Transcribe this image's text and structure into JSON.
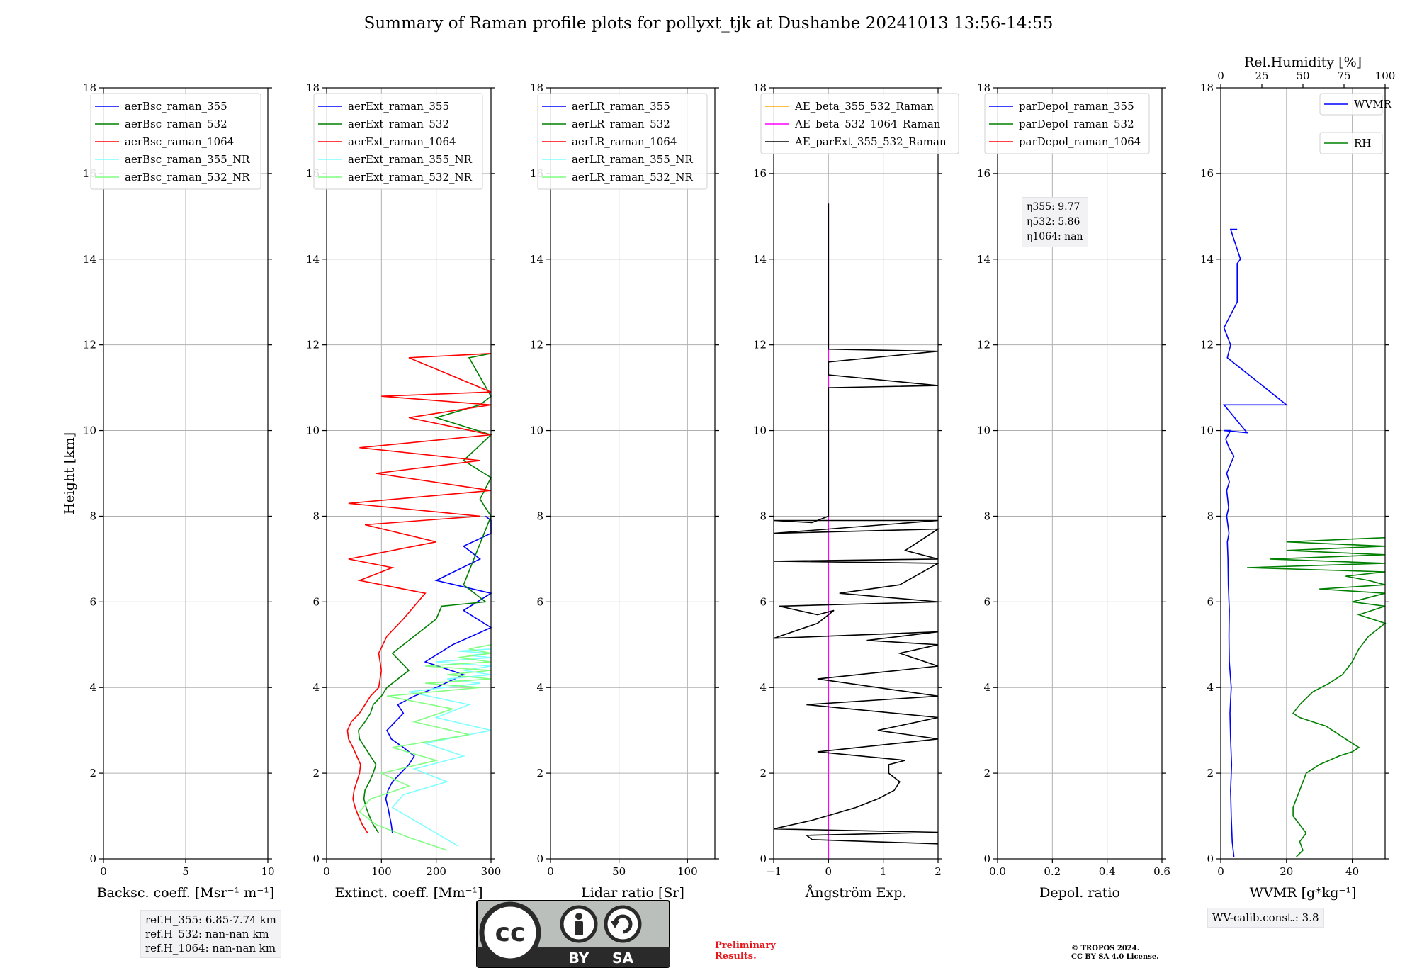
{
  "figure": {
    "title": "Summary of Raman profile plots for pollyxt_tjk at Dushanbe 20241013 13:56-14:55",
    "refH": [
      "ref.H_355: 6.85-7.74 km",
      "ref.H_532: nan-nan km",
      "ref.H_1064: nan-nan km"
    ],
    "eta": [
      "η355: 9.77",
      "η532: 5.86",
      "η1064: nan"
    ],
    "wv_calib": "WV-calib.const.: 3.8",
    "preliminary": [
      "Preliminary",
      "Results."
    ],
    "copyright": [
      "© TROPOS 2024.",
      "CC BY SA 4.0 License."
    ],
    "license_badge": {
      "icon": "cc-by-sa-badge",
      "labels": [
        "BY",
        "SA"
      ],
      "colors": {
        "bg": "#bbbfbb",
        "dark": "#2a2a2a"
      }
    }
  },
  "chart_data": [
    {
      "type": "line",
      "xlabel": "Backsc. coeff. [Msr⁻¹ m⁻¹]",
      "ylabel": "Height [km]",
      "xlim": [
        0,
        10
      ],
      "ylim": [
        0,
        18
      ],
      "xticks": [
        "0",
        "5",
        "10"
      ],
      "yticks": [
        "0",
        "2",
        "4",
        "6",
        "8",
        "10",
        "12",
        "14",
        "16",
        "18"
      ],
      "grid": true,
      "legend_position": "top-left",
      "series": [
        {
          "name": "aerBsc_raman_355",
          "color": "#0000ff",
          "x": [],
          "y": []
        },
        {
          "name": "aerBsc_raman_532",
          "color": "#008000",
          "x": [],
          "y": []
        },
        {
          "name": "aerBsc_raman_1064",
          "color": "#ff0000",
          "x": [],
          "y": []
        },
        {
          "name": "aerBsc_raman_355_NR",
          "color": "#7fffff",
          "x": [],
          "y": []
        },
        {
          "name": "aerBsc_raman_532_NR",
          "color": "#80ff80",
          "x": [],
          "y": []
        }
      ]
    },
    {
      "type": "line",
      "xlabel": "Extinct. coeff. [Mm⁻¹]",
      "ylabel": "",
      "xlim": [
        0,
        300
      ],
      "ylim": [
        0,
        18
      ],
      "xticks": [
        "0",
        "100",
        "200",
        "300"
      ],
      "yticks": [
        "0",
        "2",
        "4",
        "6",
        "8",
        "10",
        "12",
        "14",
        "16",
        "18"
      ],
      "grid": true,
      "legend_position": "top-left",
      "series": [
        {
          "name": "aerExt_raman_355",
          "color": "#0000ff",
          "x": [
            120,
            118,
            115,
            112,
            108,
            112,
            120,
            135,
            150,
            160,
            140,
            118,
            110,
            125,
            140,
            130,
            160,
            200,
            250,
            180,
            230,
            300,
            250,
            300,
            200,
            280,
            250,
            300,
            300,
            290
          ],
          "y": [
            0.6,
            0.8,
            1.0,
            1.2,
            1.4,
            1.6,
            1.8,
            2.0,
            2.2,
            2.4,
            2.6,
            2.8,
            3.0,
            3.2,
            3.4,
            3.6,
            3.8,
            4.0,
            4.3,
            4.6,
            5.0,
            5.4,
            5.8,
            6.2,
            6.5,
            7.0,
            7.3,
            7.6,
            7.9,
            8.0
          ]
        },
        {
          "name": "aerExt_raman_532",
          "color": "#008000",
          "x": [
            95,
            85,
            78,
            72,
            68,
            70,
            78,
            85,
            90,
            80,
            70,
            60,
            58,
            70,
            80,
            85,
            100,
            110,
            150,
            120,
            160,
            200,
            210,
            290,
            250,
            300,
            280,
            300,
            250,
            300,
            200,
            280,
            300,
            260,
            300
          ],
          "y": [
            0.6,
            0.8,
            1.0,
            1.2,
            1.4,
            1.6,
            1.8,
            2.0,
            2.2,
            2.4,
            2.6,
            2.8,
            3.0,
            3.2,
            3.4,
            3.6,
            3.8,
            4.0,
            4.4,
            4.8,
            5.2,
            5.6,
            5.9,
            6.0,
            6.4,
            8.0,
            8.4,
            8.9,
            9.3,
            9.9,
            10.3,
            10.6,
            10.8,
            11.7,
            11.8
          ]
        },
        {
          "name": "aerExt_raman_1064",
          "color": "#ff0000",
          "x": [
            75,
            65,
            58,
            52,
            48,
            50,
            55,
            60,
            62,
            55,
            48,
            40,
            38,
            45,
            60,
            70,
            80,
            95,
            100,
            95,
            110,
            140,
            160,
            180,
            60,
            120,
            40,
            200,
            70,
            280,
            40,
            300,
            90,
            280,
            60,
            300,
            150,
            300,
            100,
            300,
            150,
            300
          ],
          "y": [
            0.6,
            0.8,
            1.0,
            1.2,
            1.4,
            1.6,
            1.8,
            2.0,
            2.2,
            2.4,
            2.6,
            2.8,
            3.0,
            3.2,
            3.4,
            3.6,
            3.8,
            4.0,
            4.4,
            4.8,
            5.2,
            5.6,
            5.9,
            6.2,
            6.5,
            6.8,
            7.0,
            7.4,
            7.8,
            8.0,
            8.3,
            8.6,
            9.0,
            9.3,
            9.6,
            9.9,
            10.3,
            10.6,
            10.8,
            10.9,
            11.7,
            11.8
          ]
        },
        {
          "name": "aerExt_raman_355_NR",
          "color": "#7fffff",
          "x": [
            240,
            200,
            160,
            120,
            140,
            220,
            160,
            250,
            180,
            300,
            200,
            260,
            150,
            280,
            220,
            300,
            250,
            300,
            200,
            300,
            260,
            300,
            240,
            300
          ],
          "y": [
            0.3,
            0.6,
            0.9,
            1.2,
            1.5,
            1.8,
            2.1,
            2.4,
            2.7,
            3.0,
            3.3,
            3.6,
            3.9,
            4.1,
            4.2,
            4.3,
            4.4,
            4.5,
            4.6,
            4.7,
            4.75,
            4.8,
            4.85,
            4.9
          ]
        },
        {
          "name": "aerExt_raman_532_NR",
          "color": "#80ff80",
          "x": [
            220,
            150,
            90,
            60,
            80,
            150,
            100,
            200,
            120,
            260,
            160,
            230,
            110,
            280,
            180,
            300,
            220,
            300,
            180,
            300,
            240,
            300,
            260,
            300
          ],
          "y": [
            0.2,
            0.5,
            0.8,
            1.1,
            1.4,
            1.7,
            2.0,
            2.3,
            2.6,
            2.9,
            3.2,
            3.5,
            3.8,
            4.0,
            4.1,
            4.2,
            4.3,
            4.4,
            4.5,
            4.6,
            4.7,
            4.8,
            4.9,
            5.0
          ]
        }
      ]
    },
    {
      "type": "line",
      "xlabel": "Lidar ratio [Sr]",
      "ylabel": "",
      "xlim": [
        0,
        120
      ],
      "ylim": [
        0,
        18
      ],
      "xticks": [
        "0",
        "50",
        "100"
      ],
      "yticks": [
        "0",
        "2",
        "4",
        "6",
        "8",
        "10",
        "12",
        "14",
        "16",
        "18"
      ],
      "grid": true,
      "legend_position": "top-left",
      "series": [
        {
          "name": "aerLR_raman_355",
          "color": "#0000ff",
          "x": [],
          "y": []
        },
        {
          "name": "aerLR_raman_532",
          "color": "#008000",
          "x": [],
          "y": []
        },
        {
          "name": "aerLR_raman_1064",
          "color": "#ff0000",
          "x": [],
          "y": []
        },
        {
          "name": "aerLR_raman_355_NR",
          "color": "#7fffff",
          "x": [],
          "y": []
        },
        {
          "name": "aerLR_raman_532_NR",
          "color": "#80ff80",
          "x": [],
          "y": []
        }
      ]
    },
    {
      "type": "line",
      "xlabel": "Ångström Exp.",
      "ylabel": "",
      "xlim": [
        -1,
        2
      ],
      "ylim": [
        0,
        18
      ],
      "xticks": [
        "−1",
        "0",
        "1",
        "2"
      ],
      "yticks": [
        "0",
        "2",
        "4",
        "6",
        "8",
        "10",
        "12",
        "14",
        "16",
        "18"
      ],
      "grid": true,
      "legend_position": "top-left",
      "series": [
        {
          "name": "AE_beta_355_532_Raman",
          "color": "#ffa500",
          "x": [],
          "y": []
        },
        {
          "name": "AE_beta_532_1064_Raman",
          "color": "#ff00ff",
          "x": [
            0,
            0
          ],
          "y": [
            0,
            15.3
          ]
        },
        {
          "name": "AE_parExt_355_532_Raman",
          "color": "#000000",
          "x": [
            2,
            -0.3,
            -0.4,
            2,
            -1,
            -0.3,
            0.5,
            0.9,
            1.2,
            1.3,
            1.1,
            1.1,
            1.4,
            -0.2,
            2,
            0.9,
            2,
            -0.4,
            2,
            -0.2,
            2,
            1.3,
            2,
            0.7,
            2,
            -1,
            -0.2,
            0.1,
            -0.2,
            -0.9,
            2,
            0.2,
            1.3,
            2,
            -1,
            2,
            1.4,
            2,
            -1,
            2,
            -1,
            -0.3,
            0,
            0,
            2,
            0,
            0,
            2,
            0,
            0
          ],
          "y": [
            0.35,
            0.45,
            0.55,
            0.62,
            0.7,
            0.9,
            1.2,
            1.4,
            1.6,
            1.8,
            2.0,
            2.2,
            2.3,
            2.5,
            2.8,
            3.0,
            3.3,
            3.6,
            3.8,
            4.2,
            4.5,
            4.8,
            5.0,
            5.1,
            5.3,
            5.15,
            5.5,
            5.8,
            5.7,
            5.9,
            6.0,
            6.2,
            6.4,
            6.9,
            6.95,
            7.0,
            7.2,
            7.7,
            7.6,
            7.9,
            7.9,
            7.85,
            8.0,
            11.0,
            11.05,
            11.3,
            11.6,
            11.85,
            11.9,
            15.3
          ]
        }
      ]
    },
    {
      "type": "line",
      "xlabel": "Depol. ratio",
      "ylabel": "",
      "xlim": [
        0,
        0.6
      ],
      "ylim": [
        0,
        18
      ],
      "xticks": [
        "0.0",
        "0.2",
        "0.4",
        "0.6"
      ],
      "yticks": [
        "0",
        "2",
        "4",
        "6",
        "8",
        "10",
        "12",
        "14",
        "16",
        "18"
      ],
      "grid": true,
      "legend_position": "top-left",
      "series": [
        {
          "name": "parDepol_raman_355",
          "color": "#0000ff",
          "x": [],
          "y": []
        },
        {
          "name": "parDepol_raman_532",
          "color": "#008000",
          "x": [],
          "y": []
        },
        {
          "name": "parDepol_raman_1064",
          "color": "#ff0000",
          "x": [],
          "y": []
        }
      ]
    },
    {
      "type": "line",
      "xlabel": "WVMR [g*kg⁻¹]",
      "ylabel": "",
      "xlim": [
        0,
        50
      ],
      "ylim": [
        0,
        18
      ],
      "xticks": [
        "0",
        "20",
        "40"
      ],
      "yticks": [
        "0",
        "2",
        "4",
        "6",
        "8",
        "10",
        "12",
        "14",
        "16",
        "18"
      ],
      "x2label": "Rel.Humidity [%]",
      "x2lim": [
        0,
        100
      ],
      "x2ticks": [
        "0",
        "25",
        "50",
        "75",
        "100"
      ],
      "grid": true,
      "legend_position": "top-right",
      "series": [
        {
          "name": "WVMR",
          "color": "#0000ff",
          "axis": "bottom",
          "x": [
            4,
            3.5,
            3.2,
            3.0,
            3.3,
            3.0,
            2.8,
            3.2,
            2.6,
            2.5,
            2.6,
            2.3,
            2.2,
            2.0,
            2.5,
            1.8,
            2.4,
            1.8,
            2.6,
            1.8,
            4,
            2.5,
            1.5,
            3,
            1,
            8,
            1,
            20,
            2,
            3,
            1,
            5,
            5,
            6,
            3,
            5
          ],
          "y": [
            0.05,
            0.4,
            1.0,
            1.6,
            2.2,
            2.8,
            3.4,
            4.0,
            4.6,
            5.2,
            5.8,
            6.4,
            7.0,
            7.4,
            7.6,
            8.0,
            8.2,
            8.6,
            8.8,
            9.0,
            9.4,
            9.6,
            9.8,
            10.0,
            10.0,
            9.95,
            10.6,
            10.6,
            11.7,
            12.0,
            12.4,
            13.0,
            13.9,
            14.0,
            14.7,
            14.7
          ]
        },
        {
          "name": "RH",
          "color": "#008000",
          "axis": "bottom",
          "x": [
            23,
            25,
            24,
            26,
            24,
            22,
            22,
            23,
            24,
            25,
            26,
            28,
            30,
            33,
            36,
            40,
            42,
            40,
            38,
            36,
            34,
            32,
            28,
            24,
            22,
            24,
            28,
            33,
            37,
            40,
            42,
            45,
            50,
            42,
            50,
            40,
            50,
            30,
            50,
            45,
            38,
            50,
            8,
            50,
            15,
            50,
            20,
            50,
            20,
            50
          ],
          "y": [
            0.05,
            0.2,
            0.4,
            0.6,
            0.8,
            1.0,
            1.2,
            1.4,
            1.6,
            1.8,
            2.0,
            2.1,
            2.2,
            2.3,
            2.4,
            2.5,
            2.6,
            2.7,
            2.8,
            2.9,
            3.0,
            3.1,
            3.2,
            3.3,
            3.4,
            3.6,
            3.9,
            4.1,
            4.3,
            4.6,
            4.9,
            5.2,
            5.5,
            5.7,
            5.9,
            6.0,
            6.2,
            6.3,
            6.4,
            6.5,
            6.6,
            6.7,
            6.8,
            6.9,
            7.0,
            7.1,
            7.2,
            7.3,
            7.4,
            7.5
          ]
        }
      ]
    }
  ]
}
